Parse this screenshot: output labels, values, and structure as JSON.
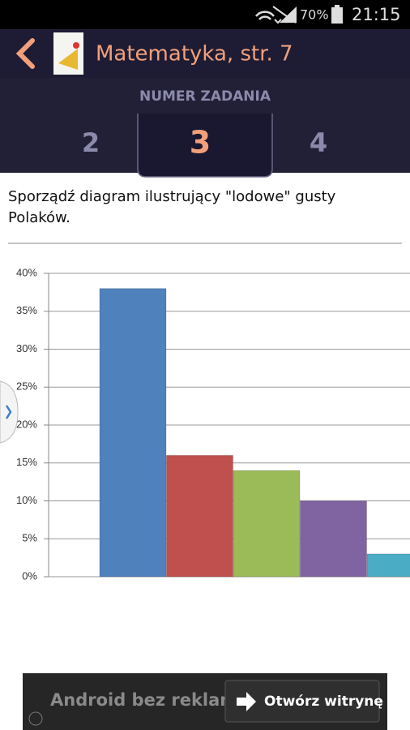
{
  "status_bar": {
    "battery": "70%",
    "time": "21:15"
  },
  "app_bar": {
    "title": "Matematyka, str. 7"
  },
  "tabs": {
    "header": "NUMER ZADANIA",
    "items": [
      "2",
      "3",
      "4"
    ]
  },
  "task": {
    "lines": [
      "Sporządź diagram ilustrujący \"lodowe\" gusty",
      "Polaków."
    ]
  },
  "chart_data": {
    "type": "bar",
    "categories": [
      null,
      null,
      null,
      null,
      null
    ],
    "values": [
      38,
      16,
      14,
      10,
      3
    ],
    "colors": [
      "#4f81bd",
      "#c0504d",
      "#9bbb59",
      "#8064a2",
      "#4bacc6"
    ],
    "ylim": [
      0,
      40
    ],
    "yticks": [
      {
        "value": 0,
        "label": "0%"
      },
      {
        "value": 5,
        "label": "5%"
      },
      {
        "value": 10,
        "label": "10%"
      },
      {
        "value": 15,
        "label": "15%"
      },
      {
        "value": 20,
        "label": "20%"
      },
      {
        "value": 25,
        "label": "25%"
      },
      {
        "value": 30,
        "label": "30%"
      },
      {
        "value": 35,
        "label": "35%"
      },
      {
        "value": 40,
        "label": "40%"
      }
    ],
    "grid": true
  },
  "ad": {
    "text": "Android bez reklam",
    "button": "Otwórz witrynę"
  }
}
